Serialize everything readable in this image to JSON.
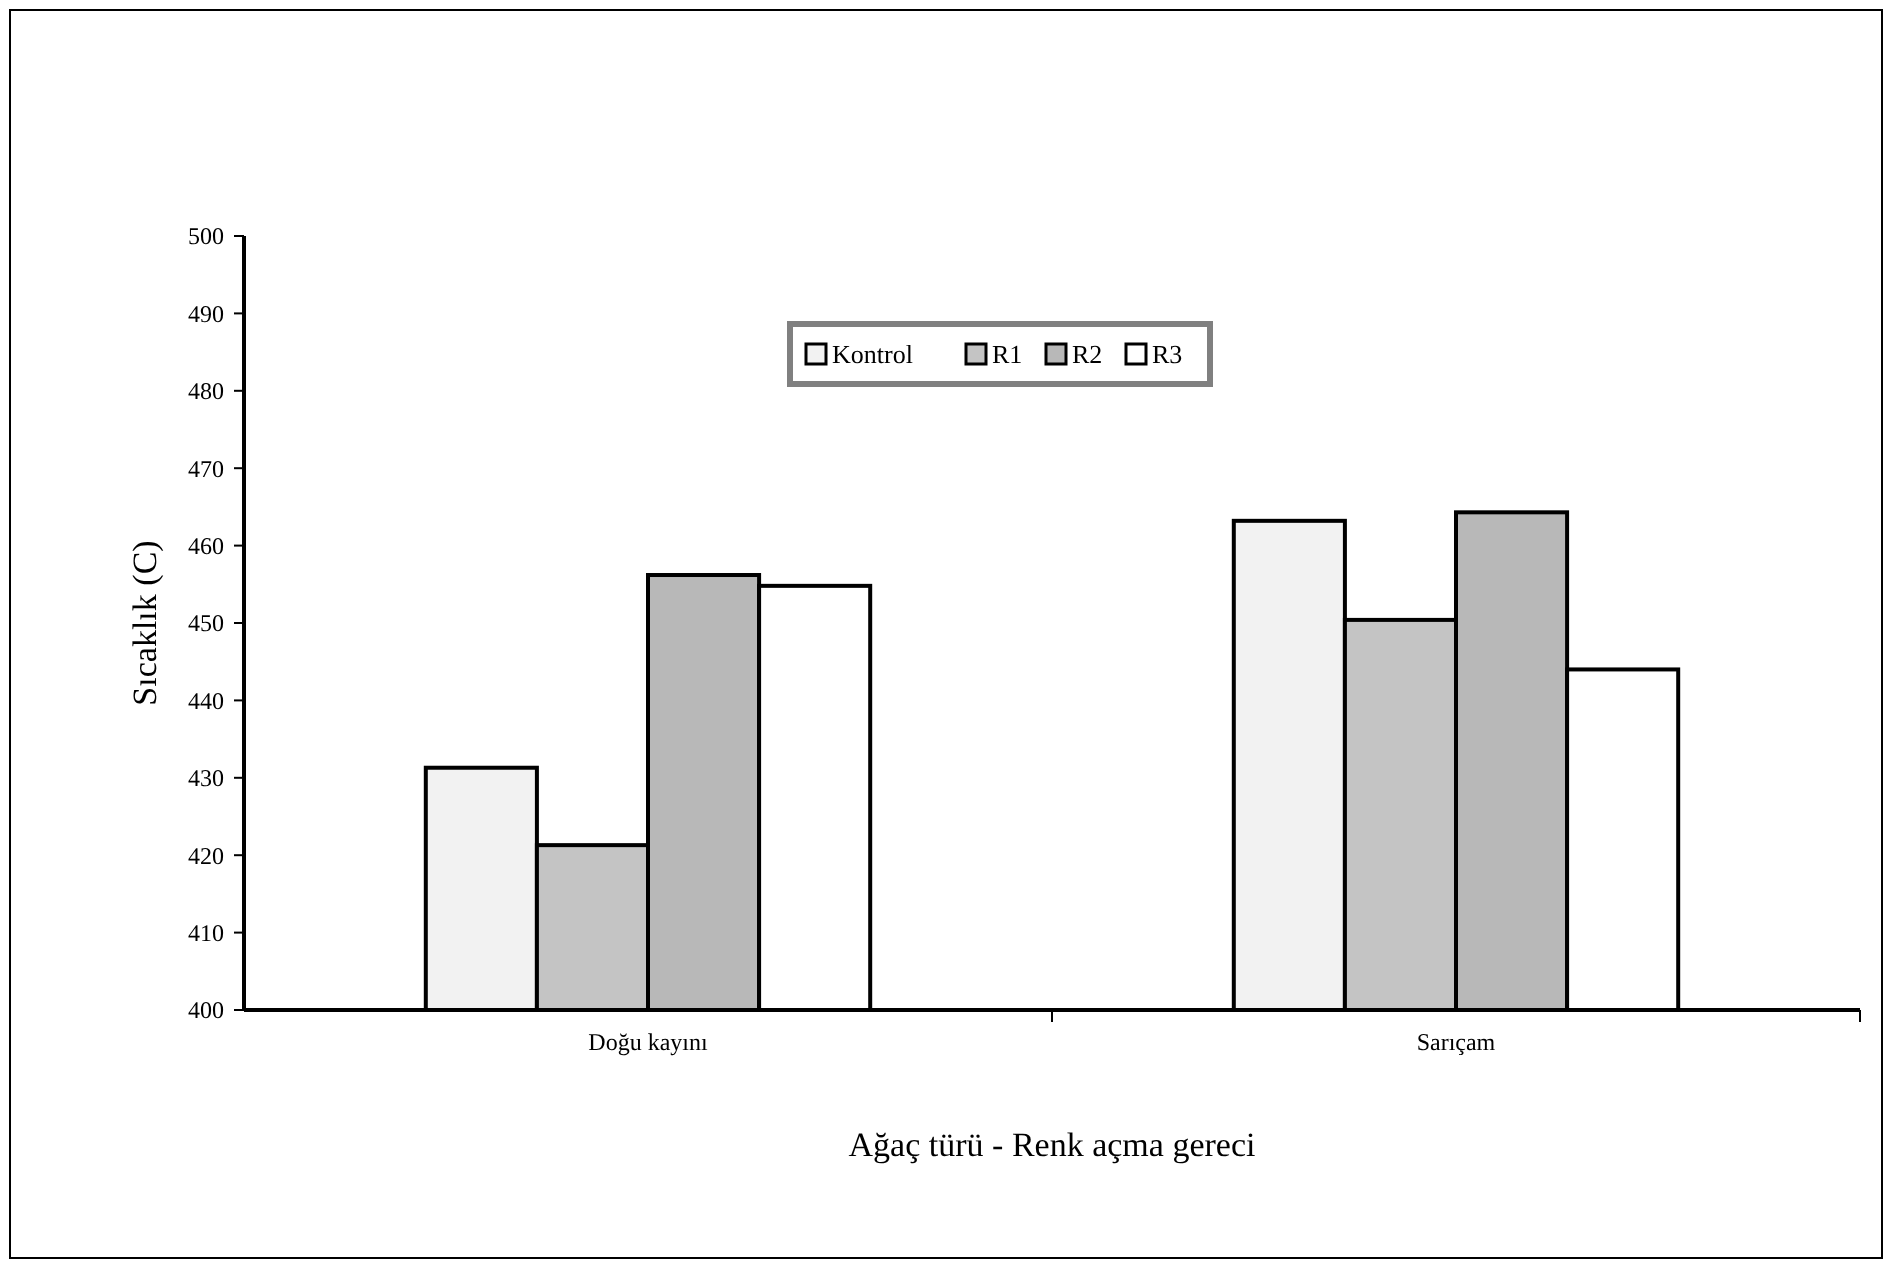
{
  "chart_data": {
    "type": "bar",
    "xlabel": "Ağaç türü - Renk açma gereci",
    "ylabel": "Sıcaklık (C)",
    "categories": [
      "Doğu kayını",
      "Sarıçam"
    ],
    "series": [
      {
        "name": "Kontrol",
        "color": "#f2f2f2",
        "values": [
          431.3,
          463.2
        ]
      },
      {
        "name": "R1",
        "color": "#c4c4c4",
        "values": [
          421.3,
          450.4
        ]
      },
      {
        "name": "R2",
        "color": "#b8b8b8",
        "values": [
          456.2,
          464.3
        ]
      },
      {
        "name": "R3",
        "color": "#ffffff",
        "values": [
          454.8,
          444.0
        ]
      }
    ],
    "ylim": [
      400,
      500
    ],
    "yticks": [
      400,
      410,
      420,
      430,
      440,
      450,
      460,
      470,
      480,
      490,
      500
    ],
    "legend": "top",
    "grid": false
  }
}
